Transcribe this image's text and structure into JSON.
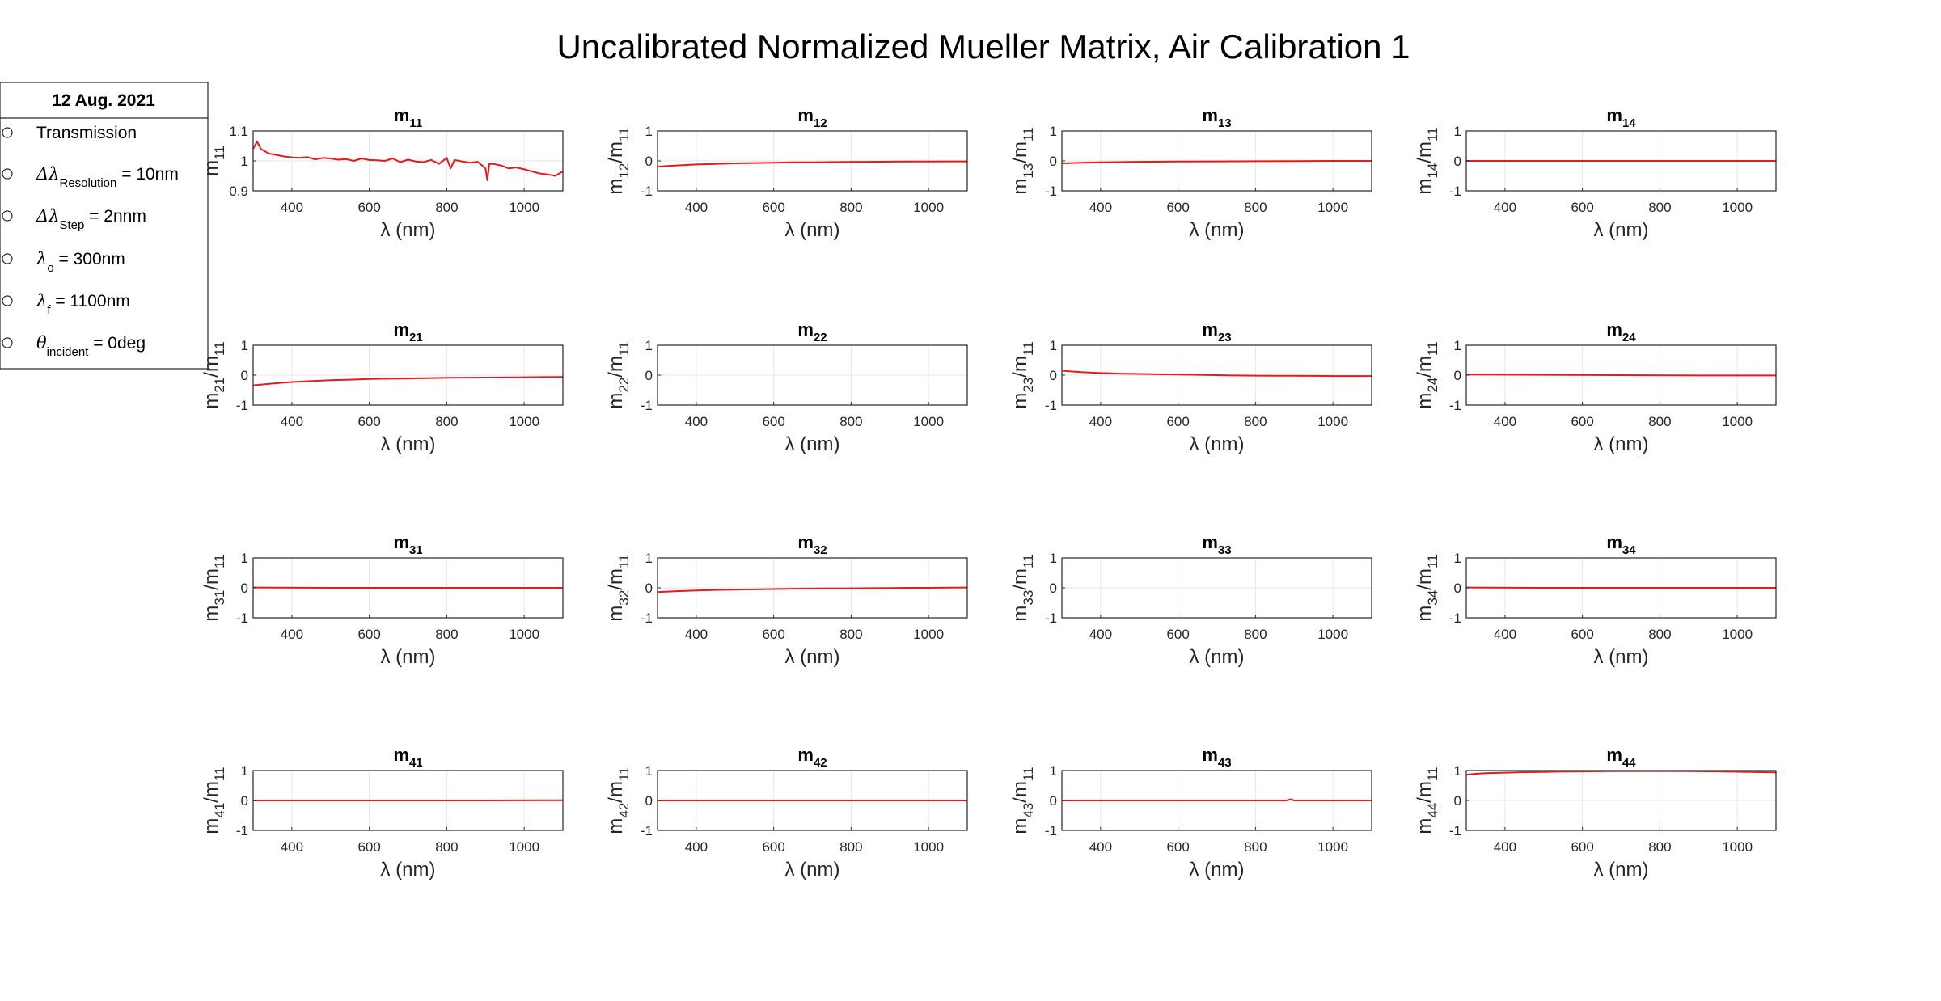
{
  "figure": {
    "title": "Uncalibrated Normalized Mueller Matrix,  Air Calibration 1"
  },
  "legend": {
    "title": "12 Aug. 2021",
    "items": [
      {
        "text": "Transmission"
      },
      {
        "prefix": "Δλ",
        "sub": "Resolution",
        "suffix": " = 10nm"
      },
      {
        "prefix": "Δλ",
        "sub": "Step",
        "suffix": " = 2nnm"
      },
      {
        "prefix": "λ",
        "sub": "o",
        "suffix": " = 300nm"
      },
      {
        "prefix": "λ",
        "sub": "f",
        "suffix": " = 1100nm"
      },
      {
        "prefix": "θ",
        "sub": "incident",
        "suffix": " = 0deg"
      }
    ]
  },
  "chart_data": [
    {
      "type": "line",
      "title": "m11",
      "title_main": "m",
      "title_sub": "11",
      "xlabel": "λ (nm)",
      "ylabel_main": "m",
      "ylabel_sub": "11",
      "ylabel_rest": "",
      "xlim": [
        300,
        1100
      ],
      "ylim": [
        0.9,
        1.1
      ],
      "yticks": [
        0.9,
        1,
        1.1
      ],
      "ytick_labels": [
        "0.9",
        "1",
        "1.1"
      ],
      "xticks": [
        400,
        600,
        800,
        1000
      ],
      "grid": true,
      "color": "#e41a1c",
      "series": [
        {
          "x": [
            300,
            310,
            320,
            340,
            360,
            380,
            400,
            420,
            440,
            460,
            480,
            500,
            520,
            540,
            560,
            580,
            600,
            620,
            640,
            660,
            680,
            700,
            720,
            740,
            760,
            780,
            800,
            810,
            820,
            840,
            860,
            880,
            900,
            905,
            910,
            920,
            940,
            960,
            980,
            1000,
            1020,
            1040,
            1060,
            1080,
            1100
          ],
          "y": [
            1.04,
            1.065,
            1.04,
            1.025,
            1.02,
            1.015,
            1.012,
            1.01,
            1.013,
            1.005,
            1.01,
            1.008,
            1.004,
            1.006,
            1.0,
            1.008,
            1.003,
            1.002,
            1.0,
            1.008,
            0.996,
            1.004,
            0.998,
            0.996,
            1.003,
            0.99,
            1.01,
            0.975,
            1.003,
            0.998,
            0.994,
            0.997,
            0.975,
            0.935,
            0.99,
            0.99,
            0.985,
            0.975,
            0.978,
            0.972,
            0.965,
            0.958,
            0.955,
            0.95,
            0.965
          ]
        }
      ]
    },
    {
      "type": "line",
      "title": "m12",
      "title_main": "m",
      "title_sub": "12",
      "xlabel": "λ (nm)",
      "ylabel_main": "m",
      "ylabel_sub": "12",
      "ylabel_rest": "/m",
      "ylabel_sub2": "11",
      "xlim": [
        300,
        1100
      ],
      "ylim": [
        -1,
        1
      ],
      "yticks": [
        -1,
        0,
        1
      ],
      "ytick_labels": [
        "-1",
        "0",
        "1"
      ],
      "xticks": [
        400,
        600,
        800,
        1000
      ],
      "grid": true,
      "color": "#e41a1c",
      "series": [
        {
          "x": [
            300,
            350,
            400,
            450,
            500,
            550,
            600,
            650,
            700,
            750,
            800,
            850,
            900,
            950,
            1000,
            1050,
            1100
          ],
          "y": [
            -0.19,
            -0.15,
            -0.12,
            -0.1,
            -0.08,
            -0.07,
            -0.06,
            -0.05,
            -0.045,
            -0.04,
            -0.035,
            -0.03,
            -0.025,
            -0.02,
            -0.02,
            -0.015,
            -0.015
          ]
        }
      ]
    },
    {
      "type": "line",
      "title": "m13",
      "title_main": "m",
      "title_sub": "13",
      "xlabel": "λ (nm)",
      "ylabel_main": "m",
      "ylabel_sub": "13",
      "ylabel_rest": "/m",
      "ylabel_sub2": "11",
      "xlim": [
        300,
        1100
      ],
      "ylim": [
        -1,
        1
      ],
      "yticks": [
        -1,
        0,
        1
      ],
      "ytick_labels": [
        "-1",
        "0",
        "1"
      ],
      "xticks": [
        400,
        600,
        800,
        1000
      ],
      "grid": true,
      "color": "#e41a1c",
      "series": [
        {
          "x": [
            300,
            350,
            400,
            450,
            500,
            600,
            700,
            800,
            900,
            1000,
            1100
          ],
          "y": [
            -0.08,
            -0.06,
            -0.05,
            -0.04,
            -0.03,
            -0.02,
            -0.015,
            -0.01,
            -0.005,
            0.0,
            0.0
          ]
        }
      ]
    },
    {
      "type": "line",
      "title": "m14",
      "title_main": "m",
      "title_sub": "14",
      "xlabel": "λ (nm)",
      "ylabel_main": "m",
      "ylabel_sub": "14",
      "ylabel_rest": "/m",
      "ylabel_sub2": "11",
      "xlim": [
        300,
        1100
      ],
      "ylim": [
        -1,
        1
      ],
      "yticks": [
        -1,
        0,
        1
      ],
      "ytick_labels": [
        "-1",
        "0",
        "1"
      ],
      "xticks": [
        400,
        600,
        800,
        1000
      ],
      "grid": true,
      "color": "#e41a1c",
      "series": [
        {
          "x": [
            300,
            500,
            700,
            900,
            1100
          ],
          "y": [
            0.0,
            0.0,
            0.0,
            0.0,
            0.0
          ]
        }
      ]
    },
    {
      "type": "line",
      "title": "m21",
      "title_main": "m",
      "title_sub": "21",
      "xlabel": "λ (nm)",
      "ylabel_main": "m",
      "ylabel_sub": "21",
      "ylabel_rest": "/m",
      "ylabel_sub2": "11",
      "xlim": [
        300,
        1100
      ],
      "ylim": [
        -1,
        1
      ],
      "yticks": [
        -1,
        0,
        1
      ],
      "ytick_labels": [
        "-1",
        "0",
        "1"
      ],
      "xticks": [
        400,
        600,
        800,
        1000
      ],
      "grid": true,
      "color": "#e41a1c",
      "series": [
        {
          "x": [
            300,
            350,
            400,
            450,
            500,
            550,
            600,
            650,
            700,
            750,
            800,
            850,
            900,
            950,
            1000,
            1050,
            1100
          ],
          "y": [
            -0.34,
            -0.28,
            -0.23,
            -0.2,
            -0.17,
            -0.15,
            -0.13,
            -0.12,
            -0.11,
            -0.1,
            -0.09,
            -0.085,
            -0.08,
            -0.075,
            -0.07,
            -0.065,
            -0.06
          ]
        }
      ]
    },
    {
      "type": "line",
      "title": "m22",
      "title_main": "m",
      "title_sub": "22",
      "xlabel": "λ (nm)",
      "ylabel_main": "m",
      "ylabel_sub": "22",
      "ylabel_rest": "/m",
      "ylabel_sub2": "11",
      "xlim": [
        300,
        1100
      ],
      "ylim": [
        -1,
        1
      ],
      "yticks": [
        -1,
        0,
        1
      ],
      "ytick_labels": [
        "-1",
        "0",
        "1"
      ],
      "xticks": [
        400,
        600,
        800,
        1000
      ],
      "grid": true,
      "color": "#e41a1c",
      "series": []
    },
    {
      "type": "line",
      "title": "m23",
      "title_main": "m",
      "title_sub": "23",
      "xlabel": "λ (nm)",
      "ylabel_main": "m",
      "ylabel_sub": "23",
      "ylabel_rest": "/m",
      "ylabel_sub2": "11",
      "xlim": [
        300,
        1100
      ],
      "ylim": [
        -1,
        1
      ],
      "yticks": [
        -1,
        0,
        1
      ],
      "ytick_labels": [
        "-1",
        "0",
        "1"
      ],
      "xticks": [
        400,
        600,
        800,
        1000
      ],
      "grid": true,
      "color": "#e41a1c",
      "series": [
        {
          "x": [
            300,
            320,
            350,
            400,
            450,
            500,
            550,
            600,
            650,
            700,
            750,
            800,
            850,
            900,
            950,
            1000,
            1050,
            1100
          ],
          "y": [
            0.15,
            0.13,
            0.1,
            0.07,
            0.05,
            0.04,
            0.03,
            0.02,
            0.01,
            0.0,
            -0.01,
            -0.015,
            -0.02,
            -0.02,
            -0.025,
            -0.03,
            -0.03,
            -0.03
          ]
        }
      ]
    },
    {
      "type": "line",
      "title": "m24",
      "title_main": "m",
      "title_sub": "24",
      "xlabel": "λ (nm)",
      "ylabel_main": "m",
      "ylabel_sub": "24",
      "ylabel_rest": "/m",
      "ylabel_sub2": "11",
      "xlim": [
        300,
        1100
      ],
      "ylim": [
        -1,
        1
      ],
      "yticks": [
        -1,
        0,
        1
      ],
      "ytick_labels": [
        "-1",
        "0",
        "1"
      ],
      "xticks": [
        400,
        600,
        800,
        1000
      ],
      "grid": true,
      "color": "#e41a1c",
      "series": [
        {
          "x": [
            300,
            500,
            700,
            900,
            1100
          ],
          "y": [
            0.02,
            0.01,
            0.0,
            -0.01,
            -0.01
          ]
        }
      ]
    },
    {
      "type": "line",
      "title": "m31",
      "title_main": "m",
      "title_sub": "31",
      "xlabel": "λ (nm)",
      "ylabel_main": "m",
      "ylabel_sub": "31",
      "ylabel_rest": "/m",
      "ylabel_sub2": "11",
      "xlim": [
        300,
        1100
      ],
      "ylim": [
        -1,
        1
      ],
      "yticks": [
        -1,
        0,
        1
      ],
      "ytick_labels": [
        "-1",
        "0",
        "1"
      ],
      "xticks": [
        400,
        600,
        800,
        1000
      ],
      "grid": true,
      "color": "#e41a1c",
      "series": [
        {
          "x": [
            300,
            500,
            700,
            900,
            1100
          ],
          "y": [
            0.01,
            0.0,
            0.0,
            0.0,
            0.0
          ]
        }
      ]
    },
    {
      "type": "line",
      "title": "m32",
      "title_main": "m",
      "title_sub": "32",
      "xlabel": "λ (nm)",
      "ylabel_main": "m",
      "ylabel_sub": "32",
      "ylabel_rest": "/m",
      "ylabel_sub2": "11",
      "xlim": [
        300,
        1100
      ],
      "ylim": [
        -1,
        1
      ],
      "yticks": [
        -1,
        0,
        1
      ],
      "ytick_labels": [
        "-1",
        "0",
        "1"
      ],
      "xticks": [
        400,
        600,
        800,
        1000
      ],
      "grid": true,
      "color": "#e41a1c",
      "series": [
        {
          "x": [
            300,
            350,
            400,
            450,
            500,
            550,
            600,
            650,
            700,
            750,
            800,
            850,
            900,
            950,
            1000,
            1050,
            1100
          ],
          "y": [
            -0.14,
            -0.11,
            -0.09,
            -0.07,
            -0.06,
            -0.05,
            -0.04,
            -0.03,
            -0.025,
            -0.02,
            -0.015,
            -0.01,
            -0.005,
            0.0,
            0.0,
            0.005,
            0.01
          ]
        }
      ]
    },
    {
      "type": "line",
      "title": "m33",
      "title_main": "m",
      "title_sub": "33",
      "xlabel": "λ (nm)",
      "ylabel_main": "m",
      "ylabel_sub": "33",
      "ylabel_rest": "/m",
      "ylabel_sub2": "11",
      "xlim": [
        300,
        1100
      ],
      "ylim": [
        -1,
        1
      ],
      "yticks": [
        -1,
        0,
        1
      ],
      "ytick_labels": [
        "-1",
        "0",
        "1"
      ],
      "xticks": [
        400,
        600,
        800,
        1000
      ],
      "grid": true,
      "color": "#e41a1c",
      "series": []
    },
    {
      "type": "line",
      "title": "m34",
      "title_main": "m",
      "title_sub": "34",
      "xlabel": "λ (nm)",
      "ylabel_main": "m",
      "ylabel_sub": "34",
      "ylabel_rest": "/m",
      "ylabel_sub2": "11",
      "xlim": [
        300,
        1100
      ],
      "ylim": [
        -1,
        1
      ],
      "yticks": [
        -1,
        0,
        1
      ],
      "ytick_labels": [
        "-1",
        "0",
        "1"
      ],
      "xticks": [
        400,
        600,
        800,
        1000
      ],
      "grid": true,
      "color": "#e41a1c",
      "series": [
        {
          "x": [
            300,
            500,
            700,
            900,
            1100
          ],
          "y": [
            0.01,
            0.0,
            0.0,
            0.0,
            0.0
          ]
        }
      ]
    },
    {
      "type": "line",
      "title": "m41",
      "title_main": "m",
      "title_sub": "41",
      "xlabel": "λ (nm)",
      "ylabel_main": "m",
      "ylabel_sub": "41",
      "ylabel_rest": "/m",
      "ylabel_sub2": "11",
      "xlim": [
        300,
        1100
      ],
      "ylim": [
        -1,
        1
      ],
      "yticks": [
        -1,
        0,
        1
      ],
      "ytick_labels": [
        "-1",
        "0",
        "1"
      ],
      "xticks": [
        400,
        600,
        800,
        1000
      ],
      "grid": true,
      "color": "#e41a1c",
      "series": [
        {
          "x": [
            300,
            500,
            700,
            900,
            1100
          ],
          "y": [
            0.0,
            0.0,
            0.0,
            0.0,
            0.005
          ]
        }
      ]
    },
    {
      "type": "line",
      "title": "m42",
      "title_main": "m",
      "title_sub": "42",
      "xlabel": "λ (nm)",
      "ylabel_main": "m",
      "ylabel_sub": "42",
      "ylabel_rest": "/m",
      "ylabel_sub2": "11",
      "xlim": [
        300,
        1100
      ],
      "ylim": [
        -1,
        1
      ],
      "yticks": [
        -1,
        0,
        1
      ],
      "ytick_labels": [
        "-1",
        "0",
        "1"
      ],
      "xticks": [
        400,
        600,
        800,
        1000
      ],
      "grid": true,
      "color": "#e41a1c",
      "series": [
        {
          "x": [
            300,
            500,
            700,
            900,
            1100
          ],
          "y": [
            0.0,
            0.0,
            0.0,
            0.0,
            0.0
          ]
        }
      ]
    },
    {
      "type": "line",
      "title": "m43",
      "title_main": "m",
      "title_sub": "43",
      "xlabel": "λ (nm)",
      "ylabel_main": "m",
      "ylabel_sub": "43",
      "ylabel_rest": "/m",
      "ylabel_sub2": "11",
      "xlim": [
        300,
        1100
      ],
      "ylim": [
        -1,
        1
      ],
      "yticks": [
        -1,
        0,
        1
      ],
      "ytick_labels": [
        "-1",
        "0",
        "1"
      ],
      "xticks": [
        400,
        600,
        800,
        1000
      ],
      "grid": true,
      "color": "#e41a1c",
      "series": [
        {
          "x": [
            300,
            500,
            700,
            880,
            890,
            900,
            1100
          ],
          "y": [
            0.0,
            0.0,
            0.0,
            0.0,
            0.04,
            0.0,
            0.0
          ]
        }
      ]
    },
    {
      "type": "line",
      "title": "m44",
      "title_main": "m",
      "title_sub": "44",
      "xlabel": "λ (nm)",
      "ylabel_main": "m",
      "ylabel_sub": "44",
      "ylabel_rest": "/m",
      "ylabel_sub2": "11",
      "xlim": [
        300,
        1100
      ],
      "ylim": [
        -1,
        1
      ],
      "yticks": [
        -1,
        0,
        1
      ],
      "ytick_labels": [
        "-1",
        "0",
        "1"
      ],
      "xticks": [
        400,
        600,
        800,
        1000
      ],
      "grid": true,
      "color": "#e41a1c",
      "series": [
        {
          "x": [
            300,
            320,
            350,
            400,
            450,
            500,
            550,
            600,
            650,
            700,
            750,
            800,
            850,
            900,
            950,
            1000,
            1050,
            1100
          ],
          "y": [
            0.86,
            0.89,
            0.91,
            0.93,
            0.945,
            0.955,
            0.965,
            0.97,
            0.975,
            0.978,
            0.98,
            0.98,
            0.978,
            0.975,
            0.97,
            0.96,
            0.95,
            0.94
          ]
        }
      ]
    }
  ]
}
